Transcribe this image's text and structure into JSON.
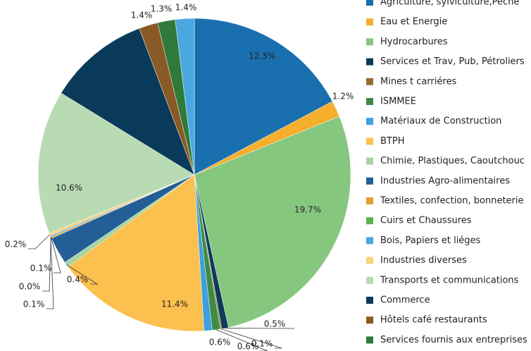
{
  "chart_data": {
    "type": "pie",
    "categories": [
      "Agriculture, sylviculture,Pêche",
      "Eau et Energie",
      "Hydrocarbures",
      "Services et Trav, Pub, Pétroliers",
      "Mines t carriéres",
      "ISMMEE",
      "Matériaux de Construction",
      "BTPH",
      "Chimie, Plastiques, Caoutchouc",
      "Industries Agro-alimentaires",
      "Textiles, confection, bonneterie",
      "Cuirs et Chaussures",
      "Bois, Papiers et liéges",
      "Industries diverses",
      "Transports et communications",
      "Commerce",
      "Hôtels café restaurants",
      "Services fournis aux entreprises",
      null
    ],
    "values": [
      12.3,
      1.2,
      19.7,
      0.5,
      0.1,
      0.6,
      0.6,
      11.4,
      0.4,
      2.0,
      0.1,
      0.0,
      0.1,
      0.2,
      10.6,
      7.5,
      1.4,
      1.3,
      1.4
    ],
    "value_labels": [
      "12.3%",
      "1.2%",
      "19.7%",
      "0.5%",
      "0.1%",
      "0.6%",
      "0.6%",
      "11.4%",
      "0.4%",
      null,
      "0.1%",
      "0.0%",
      "0.1%",
      "0.2%",
      "10.6%",
      null,
      "1.4%",
      "1.3%",
      "1.4%"
    ],
    "colors": [
      "#1a6faf",
      "#f6ae2d",
      "#86c77f",
      "#0d3b5a",
      "#9b6b2c",
      "#3d8b45",
      "#3fa0dd",
      "#fbc04e",
      "#a7d49f",
      "#235f96",
      "#e59c2b",
      "#5fb152",
      "#4aa8e0",
      "#fdd07a",
      "#b8dbb3",
      "#0a3a5a",
      "#8a5a26",
      "#2f7a3a",
      "#4aa8e0"
    ]
  }
}
